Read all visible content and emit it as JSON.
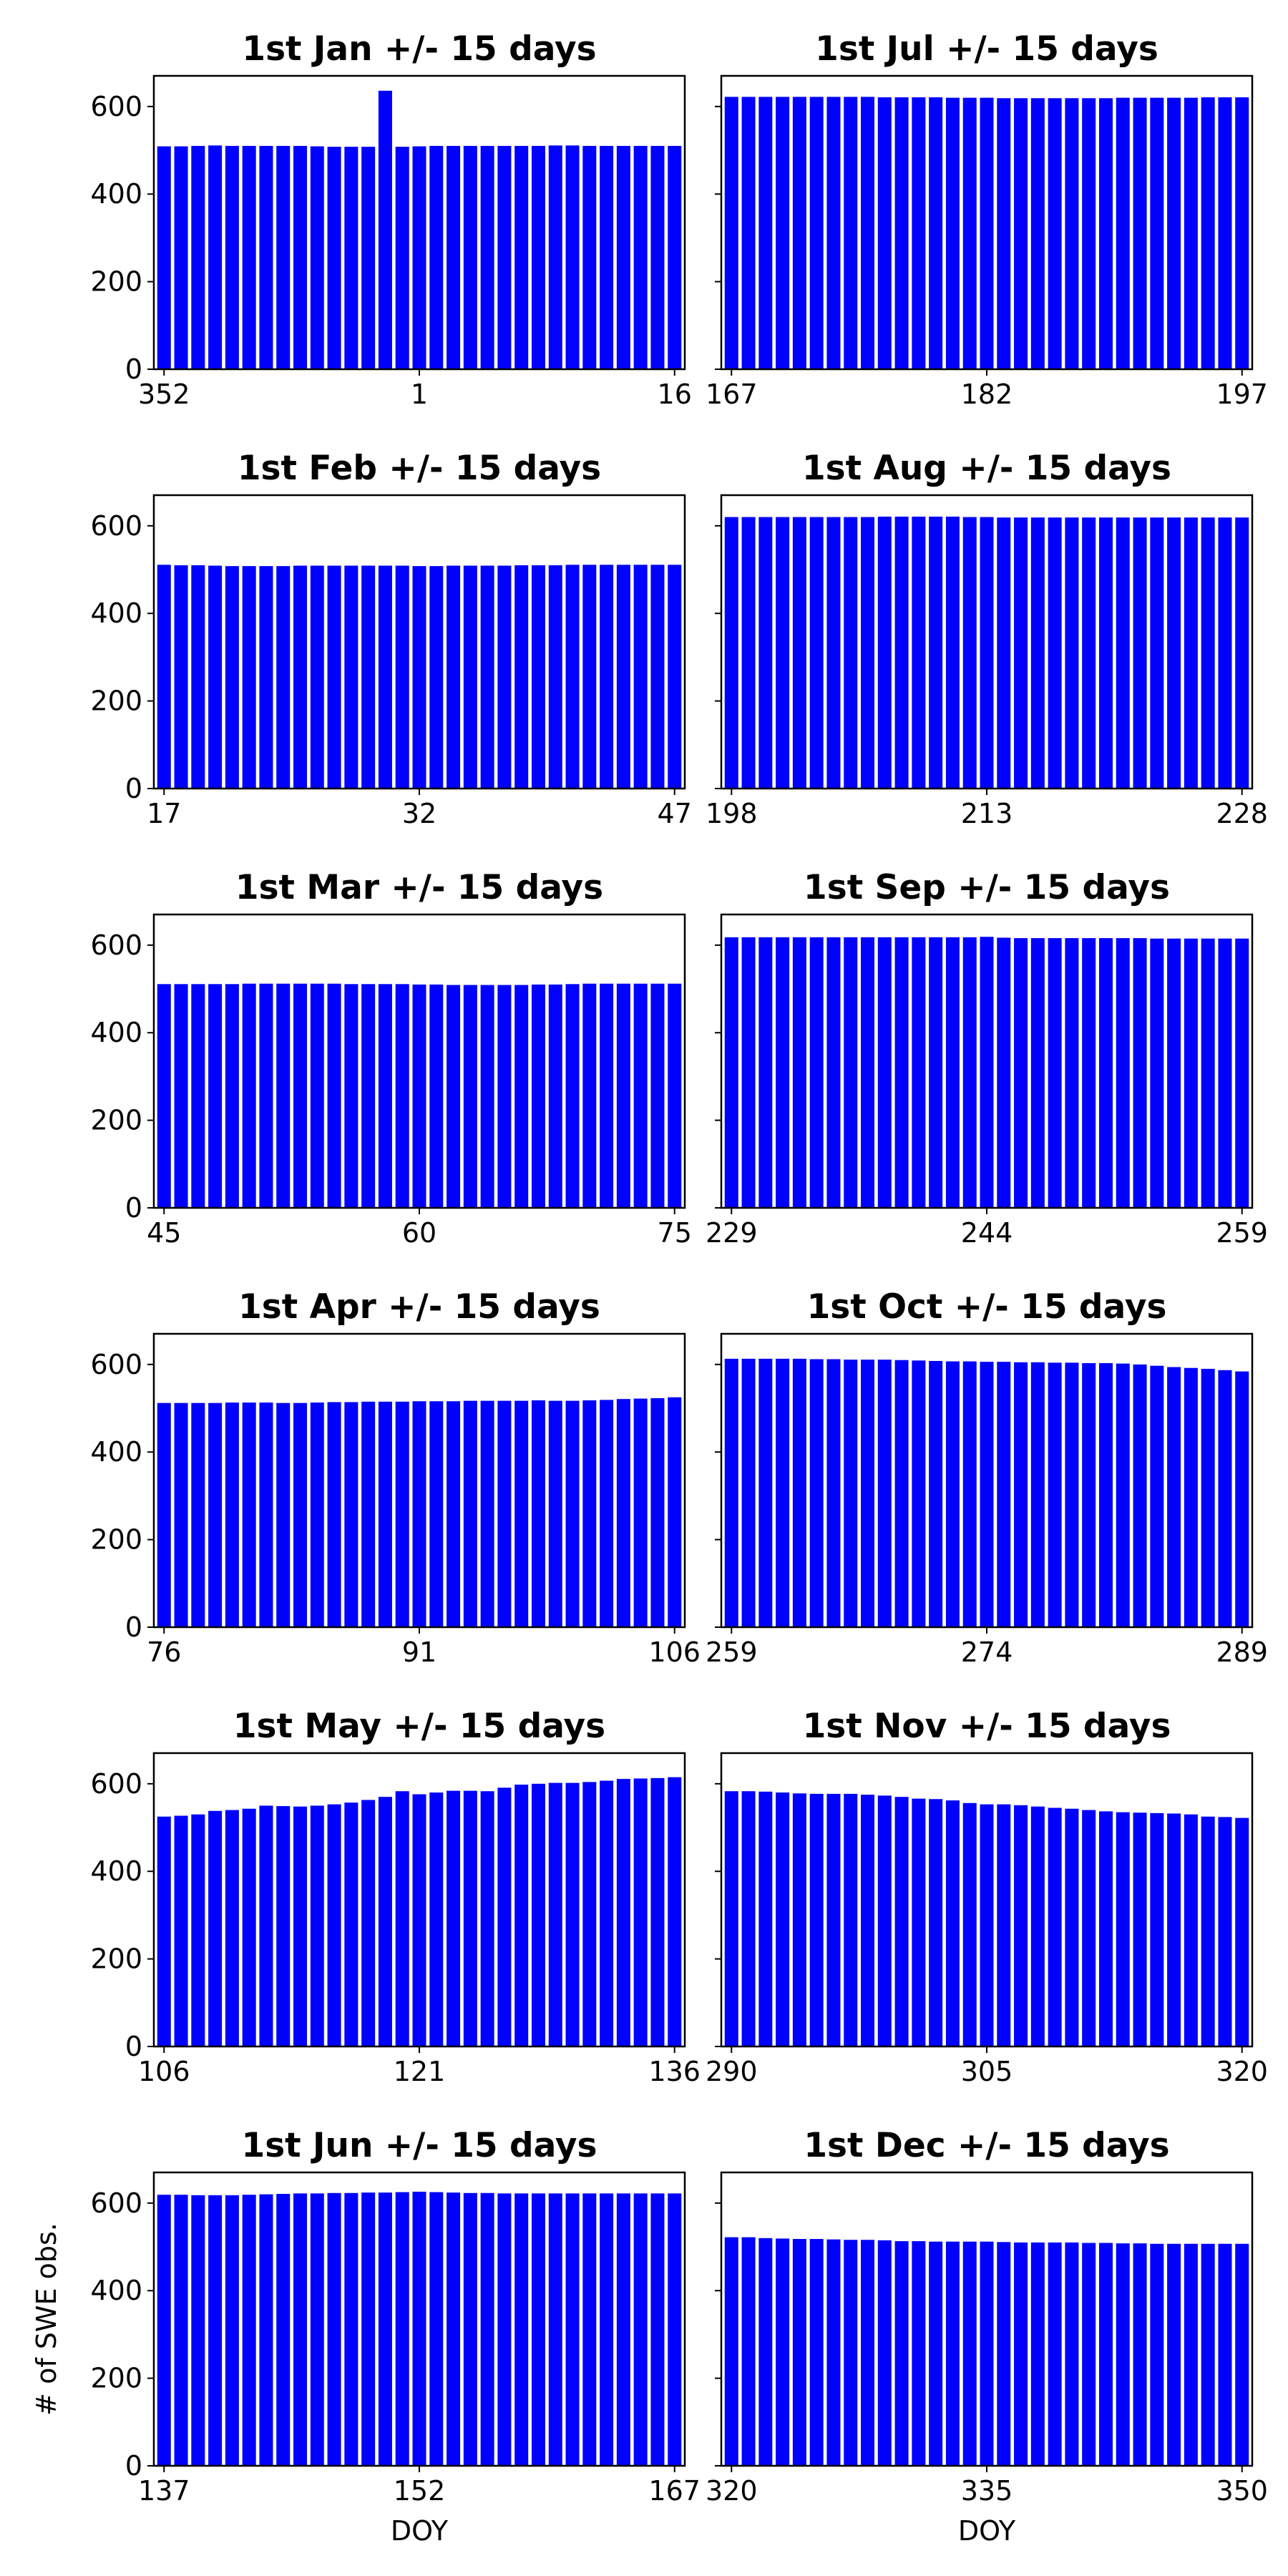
{
  "chart_data": [
    {
      "type": "bar",
      "title": "1st Jan +/- 15 days",
      "xlabel": "",
      "ylabel": "",
      "x": [
        352,
        353,
        354,
        355,
        356,
        357,
        358,
        359,
        360,
        361,
        362,
        363,
        364,
        365,
        366,
        1,
        2,
        3,
        4,
        5,
        6,
        7,
        8,
        9,
        10,
        11,
        12,
        13,
        14,
        15,
        16
      ],
      "values": [
        509,
        509,
        510,
        511,
        510,
        510,
        510,
        510,
        510,
        509,
        508,
        508,
        508,
        636,
        508,
        509,
        510,
        510,
        510,
        510,
        510,
        510,
        510,
        511,
        511,
        510,
        510,
        510,
        510,
        510,
        510
      ],
      "xticks": [
        352,
        1,
        16
      ],
      "yticks": [
        0,
        200,
        400,
        600
      ],
      "ylim": [
        0,
        670
      ],
      "color": "#0000ff"
    },
    {
      "type": "bar",
      "title": "1st Jul +/- 15 days",
      "xlabel": "",
      "ylabel": "",
      "x": [
        167,
        168,
        169,
        170,
        171,
        172,
        173,
        174,
        175,
        176,
        177,
        178,
        179,
        180,
        181,
        182,
        183,
        184,
        185,
        186,
        187,
        188,
        189,
        190,
        191,
        192,
        193,
        194,
        195,
        196,
        197
      ],
      "values": [
        622,
        622,
        622,
        622,
        622,
        622,
        622,
        622,
        622,
        621,
        621,
        621,
        621,
        620,
        620,
        620,
        619,
        619,
        619,
        619,
        619,
        619,
        619,
        620,
        620,
        620,
        620,
        620,
        621,
        621,
        621
      ],
      "xticks": [
        167,
        182,
        197
      ],
      "yticks": [
        0,
        200,
        400,
        600
      ],
      "ylim": [
        0,
        670
      ],
      "color": "#0000ff"
    },
    {
      "type": "bar",
      "title": "1st Feb +/- 15 days",
      "xlabel": "",
      "ylabel": "",
      "x": [
        17,
        18,
        19,
        20,
        21,
        22,
        23,
        24,
        25,
        26,
        27,
        28,
        29,
        30,
        31,
        32,
        33,
        34,
        35,
        36,
        37,
        38,
        39,
        40,
        41,
        42,
        43,
        44,
        45,
        46,
        47
      ],
      "values": [
        511,
        510,
        510,
        509,
        508,
        508,
        508,
        508,
        509,
        509,
        509,
        509,
        509,
        509,
        509,
        508,
        508,
        509,
        509,
        509,
        509,
        510,
        510,
        510,
        511,
        511,
        511,
        511,
        511,
        511,
        511
      ],
      "xticks": [
        17,
        32,
        47
      ],
      "yticks": [
        0,
        200,
        400,
        600
      ],
      "ylim": [
        0,
        670
      ],
      "color": "#0000ff"
    },
    {
      "type": "bar",
      "title": "1st Aug +/- 15 days",
      "xlabel": "",
      "ylabel": "",
      "x": [
        198,
        199,
        200,
        201,
        202,
        203,
        204,
        205,
        206,
        207,
        208,
        209,
        210,
        211,
        212,
        213,
        214,
        215,
        216,
        217,
        218,
        219,
        220,
        221,
        222,
        223,
        224,
        225,
        226,
        227,
        228
      ],
      "values": [
        620,
        620,
        620,
        620,
        620,
        620,
        620,
        620,
        620,
        621,
        621,
        621,
        621,
        621,
        620,
        620,
        619,
        619,
        619,
        619,
        619,
        619,
        619,
        619,
        619,
        619,
        619,
        619,
        619,
        619,
        619
      ],
      "xticks": [
        198,
        213,
        228
      ],
      "yticks": [
        0,
        200,
        400,
        600
      ],
      "ylim": [
        0,
        670
      ],
      "color": "#0000ff"
    },
    {
      "type": "bar",
      "title": "1st Mar +/- 15 days",
      "xlabel": "",
      "ylabel": "",
      "x": [
        45,
        46,
        47,
        48,
        49,
        50,
        51,
        52,
        53,
        54,
        55,
        56,
        57,
        58,
        59,
        60,
        61,
        62,
        63,
        64,
        65,
        66,
        67,
        68,
        69,
        70,
        71,
        72,
        73,
        74,
        75
      ],
      "values": [
        511,
        511,
        511,
        511,
        511,
        512,
        512,
        512,
        512,
        512,
        512,
        511,
        511,
        511,
        511,
        510,
        510,
        509,
        509,
        509,
        509,
        509,
        510,
        510,
        511,
        512,
        512,
        512,
        512,
        512,
        512
      ],
      "xticks": [
        45,
        60,
        75
      ],
      "yticks": [
        0,
        200,
        400,
        600
      ],
      "ylim": [
        0,
        670
      ],
      "color": "#0000ff"
    },
    {
      "type": "bar",
      "title": "1st Sep +/- 15 days",
      "xlabel": "",
      "ylabel": "",
      "x": [
        229,
        230,
        231,
        232,
        233,
        234,
        235,
        236,
        237,
        238,
        239,
        240,
        241,
        242,
        243,
        244,
        245,
        246,
        247,
        248,
        249,
        250,
        251,
        252,
        253,
        254,
        255,
        256,
        257,
        258,
        259
      ],
      "values": [
        618,
        618,
        618,
        618,
        618,
        618,
        618,
        618,
        618,
        618,
        618,
        618,
        618,
        618,
        618,
        619,
        617,
        616,
        616,
        616,
        616,
        616,
        616,
        616,
        616,
        615,
        615,
        615,
        615,
        615,
        615
      ],
      "xticks": [
        229,
        244,
        259
      ],
      "yticks": [
        0,
        200,
        400,
        600
      ],
      "ylim": [
        0,
        670
      ],
      "color": "#0000ff"
    },
    {
      "type": "bar",
      "title": "1st Apr +/- 15 days",
      "xlabel": "",
      "ylabel": "",
      "x": [
        76,
        77,
        78,
        79,
        80,
        81,
        82,
        83,
        84,
        85,
        86,
        87,
        88,
        89,
        90,
        91,
        92,
        93,
        94,
        95,
        96,
        97,
        98,
        99,
        100,
        101,
        102,
        103,
        104,
        105,
        106
      ],
      "values": [
        512,
        512,
        512,
        512,
        513,
        513,
        513,
        512,
        512,
        513,
        514,
        514,
        515,
        515,
        515,
        516,
        516,
        516,
        517,
        517,
        517,
        517,
        518,
        517,
        517,
        518,
        519,
        521,
        522,
        523,
        525
      ],
      "xticks": [
        76,
        91,
        106
      ],
      "yticks": [
        0,
        200,
        400,
        600
      ],
      "ylim": [
        0,
        670
      ],
      "color": "#0000ff"
    },
    {
      "type": "bar",
      "title": "1st Oct +/- 15 days",
      "xlabel": "",
      "ylabel": "",
      "x": [
        259,
        260,
        261,
        262,
        263,
        264,
        265,
        266,
        267,
        268,
        269,
        270,
        271,
        272,
        273,
        274,
        275,
        276,
        277,
        278,
        279,
        280,
        281,
        282,
        283,
        284,
        285,
        286,
        287,
        288,
        289
      ],
      "values": [
        613,
        613,
        613,
        613,
        613,
        612,
        612,
        611,
        611,
        611,
        610,
        609,
        608,
        607,
        607,
        606,
        606,
        605,
        605,
        604,
        604,
        603,
        603,
        602,
        600,
        597,
        594,
        592,
        590,
        587,
        584
      ],
      "xticks": [
        259,
        274,
        289
      ],
      "yticks": [
        0,
        200,
        400,
        600
      ],
      "ylim": [
        0,
        670
      ],
      "color": "#0000ff"
    },
    {
      "type": "bar",
      "title": "1st May +/- 15 days",
      "xlabel": "",
      "ylabel": "",
      "x": [
        106,
        107,
        108,
        109,
        110,
        111,
        112,
        113,
        114,
        115,
        116,
        117,
        118,
        119,
        120,
        121,
        122,
        123,
        124,
        125,
        126,
        127,
        128,
        129,
        130,
        131,
        132,
        133,
        134,
        135,
        136
      ],
      "values": [
        525,
        527,
        530,
        538,
        540,
        543,
        550,
        549,
        548,
        550,
        553,
        557,
        563,
        570,
        583,
        576,
        580,
        584,
        584,
        583,
        591,
        598,
        600,
        602,
        602,
        604,
        607,
        611,
        612,
        613,
        615
      ],
      "xticks": [
        106,
        121,
        136
      ],
      "yticks": [
        0,
        200,
        400,
        600
      ],
      "ylim": [
        0,
        670
      ],
      "color": "#0000ff"
    },
    {
      "type": "bar",
      "title": "1st Nov +/- 15 days",
      "xlabel": "",
      "ylabel": "",
      "x": [
        290,
        291,
        292,
        293,
        294,
        295,
        296,
        297,
        298,
        299,
        300,
        301,
        302,
        303,
        304,
        305,
        306,
        307,
        308,
        309,
        310,
        311,
        312,
        313,
        314,
        315,
        316,
        317,
        318,
        319,
        320
      ],
      "values": [
        583,
        583,
        582,
        580,
        578,
        577,
        577,
        577,
        575,
        573,
        570,
        566,
        565,
        562,
        556,
        553,
        553,
        551,
        548,
        545,
        543,
        540,
        537,
        535,
        534,
        533,
        532,
        530,
        525,
        524,
        522
      ],
      "xticks": [
        290,
        305,
        320
      ],
      "yticks": [
        0,
        200,
        400,
        600
      ],
      "ylim": [
        0,
        670
      ],
      "color": "#0000ff"
    },
    {
      "type": "bar",
      "title": "1st Jun +/- 15 days",
      "xlabel": "DOY",
      "ylabel": "# of SWE obs.",
      "x": [
        137,
        138,
        139,
        140,
        141,
        142,
        143,
        144,
        145,
        146,
        147,
        148,
        149,
        150,
        151,
        152,
        153,
        154,
        155,
        156,
        157,
        158,
        159,
        160,
        161,
        162,
        163,
        164,
        165,
        166,
        167
      ],
      "values": [
        619,
        619,
        618,
        618,
        618,
        619,
        620,
        621,
        622,
        622,
        623,
        623,
        624,
        624,
        625,
        626,
        625,
        624,
        623,
        623,
        622,
        622,
        622,
        622,
        622,
        622,
        622,
        622,
        622,
        622,
        622
      ],
      "xticks": [
        137,
        152,
        167
      ],
      "yticks": [
        0,
        200,
        400,
        600
      ],
      "ylim": [
        0,
        670
      ],
      "color": "#0000ff"
    },
    {
      "type": "bar",
      "title": "1st Dec +/- 15 days",
      "xlabel": "DOY",
      "ylabel": "",
      "x": [
        320,
        321,
        322,
        323,
        324,
        325,
        326,
        327,
        328,
        329,
        330,
        331,
        332,
        333,
        334,
        335,
        336,
        337,
        338,
        339,
        340,
        341,
        342,
        343,
        344,
        345,
        346,
        347,
        348,
        349,
        350
      ],
      "values": [
        522,
        522,
        520,
        519,
        518,
        518,
        517,
        516,
        516,
        515,
        513,
        513,
        512,
        512,
        512,
        512,
        511,
        510,
        510,
        510,
        510,
        509,
        509,
        508,
        508,
        507,
        507,
        507,
        507,
        507,
        507
      ],
      "xticks": [
        320,
        335,
        350
      ],
      "yticks": [
        0,
        200,
        400,
        600
      ],
      "ylim": [
        0,
        670
      ],
      "color": "#0000ff"
    }
  ]
}
